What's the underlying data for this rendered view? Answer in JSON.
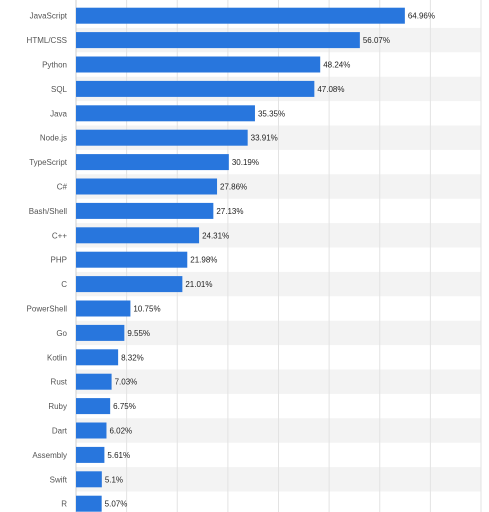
{
  "chart_data": {
    "type": "bar",
    "orientation": "horizontal",
    "categories": [
      "JavaScript",
      "HTML/CSS",
      "Python",
      "SQL",
      "Java",
      "Node.js",
      "TypeScript",
      "C#",
      "Bash/Shell",
      "C++",
      "PHP",
      "C",
      "PowerShell",
      "Go",
      "Kotlin",
      "Rust",
      "Ruby",
      "Dart",
      "Assembly",
      "Swift",
      "R"
    ],
    "values": [
      64.96,
      56.07,
      48.24,
      47.08,
      35.35,
      33.91,
      30.19,
      27.86,
      27.13,
      24.31,
      21.98,
      21.01,
      10.75,
      9.55,
      8.32,
      7.03,
      6.75,
      6.02,
      5.61,
      5.1,
      5.07
    ],
    "value_labels": [
      "64.96%",
      "56.07%",
      "48.24%",
      "47.08%",
      "35.35%",
      "33.91%",
      "30.19%",
      "27.86%",
      "27.13%",
      "24.31%",
      "21.98%",
      "21.01%",
      "10.75%",
      "9.55%",
      "8.32%",
      "7.03%",
      "6.75%",
      "6.02%",
      "5.61%",
      "5.1%",
      "5.07%"
    ],
    "xlim": [
      0,
      80
    ],
    "grid": true,
    "title": "",
    "xlabel": "",
    "ylabel": "",
    "bar_color": "#2876dd",
    "band_color": "#f3f3f3"
  }
}
